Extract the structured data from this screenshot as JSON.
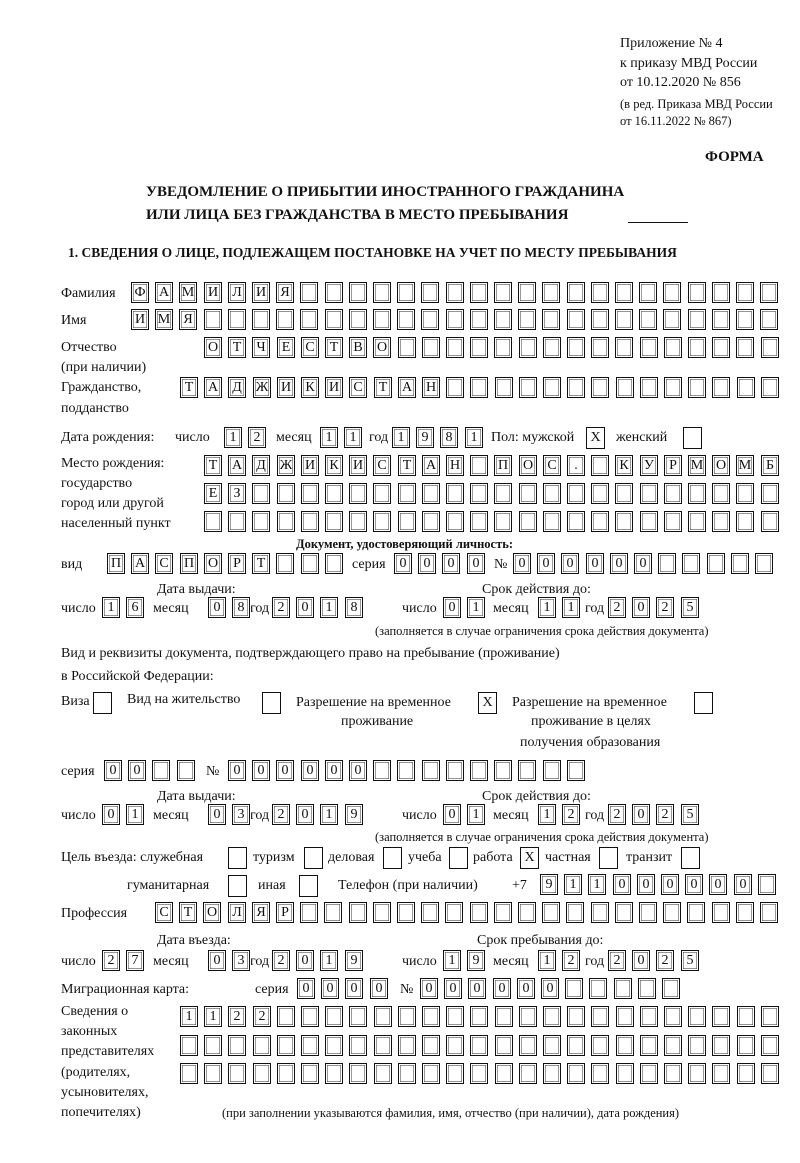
{
  "header": {
    "appendix": "Приложение № 4",
    "order_ref": "к приказу МВД России",
    "order_date": "от 10.12.2020 № 856",
    "revision_1": "(в ред. Приказа МВД России",
    "revision_2": "от 16.11.2022 № 867)",
    "form_label": "ФОРМА",
    "title_1": "УВЕДОМЛЕНИЕ О ПРИБЫТИИ ИНОСТРАННОГО ГРАЖДАНИНА",
    "title_2": "ИЛИ ЛИЦА БЕЗ ГРАЖДАНСТВА В МЕСТО ПРЕБЫВАНИЯ",
    "section_1": "1. СВЕДЕНИЯ О ЛИЦЕ, ПОДЛЕЖАЩЕМ ПОСТАНОВКЕ НА УЧЕТ ПО МЕСТУ ПРЕБЫВАНИЯ"
  },
  "person": {
    "surname_label": "Фамилия",
    "surname": "ФАМИЛИЯ",
    "name_label": "Имя",
    "name": "ИМЯ",
    "patronymic_label_1": "Отчество",
    "patronymic_label_2": "(при наличии)",
    "patronymic": "ОТЧЕСТВО",
    "citizenship_label_1": "Гражданство,",
    "citizenship_label_2": "подданство",
    "citizenship": "ТАДЖИКИСТАН",
    "birth_date_label": "Дата рождения:",
    "day_label": "число",
    "month_label": "месяц",
    "year_label": "год",
    "birth_day": "12",
    "birth_month": "11",
    "birth_year": "1981",
    "sex_label": "Пол: мужской",
    "female_label": "женский",
    "male_checked": "X",
    "female_checked": "",
    "birthplace_label_1": "Место рождения:",
    "birthplace_label_2": "государство",
    "birthplace_label_3": "город или другой",
    "birthplace_label_4": "населенный пункт",
    "birthplace_1": "ТАДЖИКИСТАН ПОС. КУРМОМБ",
    "birthplace_2": "ЕЗ",
    "birthplace_3": ""
  },
  "identity_doc": {
    "heading": "Документ, удостоверяющий личность:",
    "type_label": "вид",
    "type": "ПАСПОРТ",
    "series_label": "серия",
    "series": "0000",
    "number_label": "№",
    "number": "000000",
    "issue_label": "Дата выдачи:",
    "valid_label": "Срок действия до:",
    "day_label": "число",
    "month_label": "месяц",
    "year_label": "год",
    "issue_day": "16",
    "issue_month": "08",
    "issue_year": "2018",
    "valid_day": "01",
    "valid_month": "11",
    "valid_year": "2025",
    "note": "(заполняется в случае ограничения срока действия документа)"
  },
  "stay_doc": {
    "heading_1": "Вид и реквизиты документа, подтверждающего право на пребывание (проживание)",
    "heading_2": "в Российской Федерации:",
    "visa_label": "Виза",
    "visa": "",
    "residence_label": "Вид на жительство",
    "residence": "",
    "temp_label_1": "Разрешение на временное",
    "temp_label_2": "проживание",
    "temp": "X",
    "edu_label_1": "Разрешение на временное",
    "edu_label_2": "проживание в целях",
    "edu_label_3": "получения образования",
    "edu": "",
    "series_label": "серия",
    "series": "00",
    "number_label": "№",
    "number": "000000",
    "issue_label": "Дата выдачи:",
    "valid_label": "Срок действия до:",
    "day_label": "число",
    "month_label": "месяц",
    "year_label": "год",
    "issue_day": "01",
    "issue_month": "03",
    "issue_year": "2019",
    "valid_day": "01",
    "valid_month": "12",
    "valid_year": "2025",
    "note": "(заполняется в случае ограничения срока действия документа)"
  },
  "purpose": {
    "label": "Цель въезда: служебная",
    "official": "",
    "tourism_label": "туризм",
    "tourism": "",
    "business_label": "деловая",
    "business": "",
    "study_label": "учеба",
    "study": "",
    "work_label": "работа",
    "work": "X",
    "private_label": "частная",
    "private": "",
    "transit_label": "транзит",
    "transit": "",
    "humanitarian_label": "гуманитарная",
    "humanitarian": "",
    "other_label": "иная",
    "other": "",
    "phone_label": "Телефон (при наличии)",
    "phone_prefix": "+7",
    "phone": "911000000"
  },
  "profession": {
    "label": "Профессия",
    "value": "СТОЛЯР"
  },
  "entry": {
    "entry_label": "Дата въезда:",
    "stay_label": "Срок пребывания до:",
    "day_label": "число",
    "month_label": "месяц",
    "year_label": "год",
    "entry_day": "27",
    "entry_month": "03",
    "entry_year": "2019",
    "stay_day": "19",
    "stay_month": "12",
    "stay_year": "2025"
  },
  "migration_card": {
    "label": "Миграционная карта:",
    "series_label": "серия",
    "series": "0000",
    "number_label": "№",
    "number": "000000"
  },
  "representatives": {
    "label_1": "Сведения о",
    "label_2": "законных",
    "label_3": "представителях",
    "label_4": "(родителях,",
    "label_5": "усыновителях,",
    "label_6": "попечителях)",
    "row_1": "1122",
    "row_2": "",
    "row_3": "",
    "note": "(при заполнении указываются фамилия, имя, отчество (при наличии), дата рождения)"
  }
}
